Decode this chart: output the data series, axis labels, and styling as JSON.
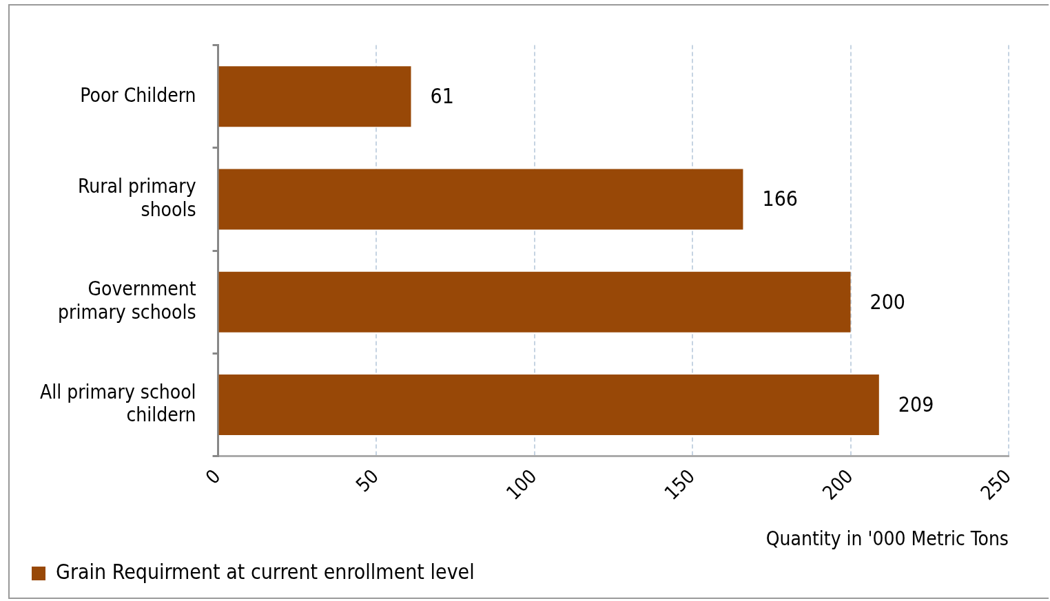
{
  "chart_data": {
    "type": "bar",
    "orientation": "horizontal",
    "categories": [
      "Poor Childern",
      "Rural primary shools",
      "Government primary schools",
      "All primary school childern"
    ],
    "series": [
      {
        "name": "Grain Requirment at current enrollment level",
        "color": "#984807",
        "values": [
          61,
          166,
          200,
          209
        ]
      }
    ],
    "xlim": [
      0,
      250
    ],
    "xticks": [
      0,
      50,
      100,
      150,
      200,
      250
    ],
    "xlabel": "Quantity in '000 Metric Tons",
    "grid": "x",
    "legend": "bottom left",
    "data_labels": true
  }
}
